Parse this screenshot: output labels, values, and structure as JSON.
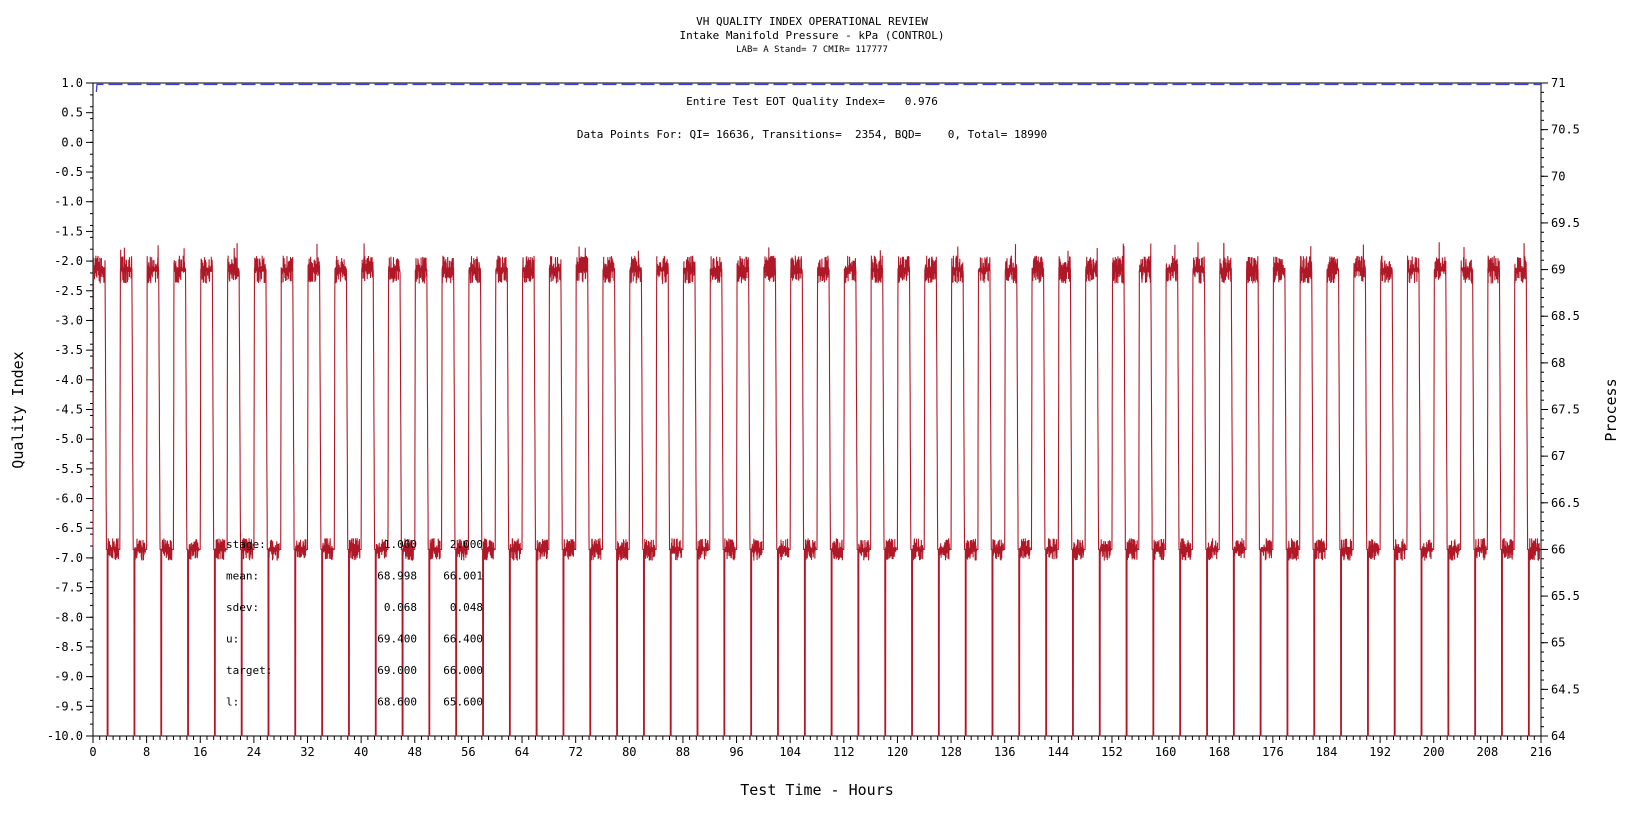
{
  "chart_data": {
    "type": "line",
    "title": "VH QUALITY INDEX OPERATIONAL REVIEW",
    "subtitle": "Intake Manifold Pressure - kPa (CONTROL)",
    "subtitle2": "LAB= A Stand= 7 CMIR= 117777",
    "xlabel": "Test Time - Hours",
    "ylabel_left": "Quality Index",
    "ylabel_right": "Process",
    "xlim": [
      0,
      216
    ],
    "ylim_left": [
      -10,
      1
    ],
    "ylim_right": [
      64,
      71
    ],
    "x_ticks": [
      0,
      8,
      16,
      24,
      32,
      40,
      48,
      56,
      64,
      72,
      80,
      88,
      96,
      104,
      112,
      120,
      128,
      136,
      144,
      152,
      160,
      168,
      176,
      184,
      192,
      200,
      208,
      216
    ],
    "y_left_ticks": [
      "1.0",
      "0.5",
      "0.0",
      "-0.5",
      "-1.0",
      "-1.5",
      "-2.0",
      "-2.5",
      "-3.0",
      "-3.5",
      "-4.0",
      "-4.5",
      "-5.0",
      "-5.5",
      "-6.0",
      "-6.5",
      "-7.0",
      "-7.5",
      "-8.0",
      "-8.5",
      "-9.0",
      "-9.5",
      "-10.0"
    ],
    "y_right_ticks": [
      "71",
      "70.5",
      "70",
      "69.5",
      "69",
      "68.5",
      "68",
      "67.5",
      "67",
      "66.5",
      "66",
      "65.5",
      "65",
      "64.5",
      "64"
    ],
    "annotation_qi": "Entire Test EOT Quality Index=   0.976",
    "annotation_points": "Data Points For: QI= 16636, Transitions=  2354, BQD=    0, Total= 18990",
    "stats_table": [
      {
        "label": "stage:",
        "s1": "1.000",
        "s2": "2.000"
      },
      {
        "label": "mean:",
        "s1": "68.998",
        "s2": "66.001"
      },
      {
        "label": "sdev:",
        "s1": "0.068",
        "s2": "0.048"
      },
      {
        "label": "u:",
        "s1": "69.400",
        "s2": "66.400"
      },
      {
        "label": "target:",
        "s1": "69.000",
        "s2": "66.000"
      },
      {
        "label": "l:",
        "s1": "68.600",
        "s2": "65.600"
      }
    ],
    "series": [
      {
        "axis": "left",
        "style": "dashed",
        "color": "#4040d0",
        "x": [
          0.5,
          0.6,
          216
        ],
        "y": [
          0.85,
          0.976,
          0.976
        ]
      },
      {
        "axis": "right",
        "style": "solid",
        "color": "#b01828",
        "cycle_hours": 4.0,
        "stage_levels": [
          69.0,
          66.0
        ],
        "stage_limits": [
          [
            68.6,
            69.4
          ],
          [
            65.6,
            66.4
          ]
        ],
        "process_min": 64.0
      }
    ]
  },
  "colors": {
    "qi_line": "#4040d0",
    "process_line": "#b01828",
    "axis": "#000000"
  }
}
